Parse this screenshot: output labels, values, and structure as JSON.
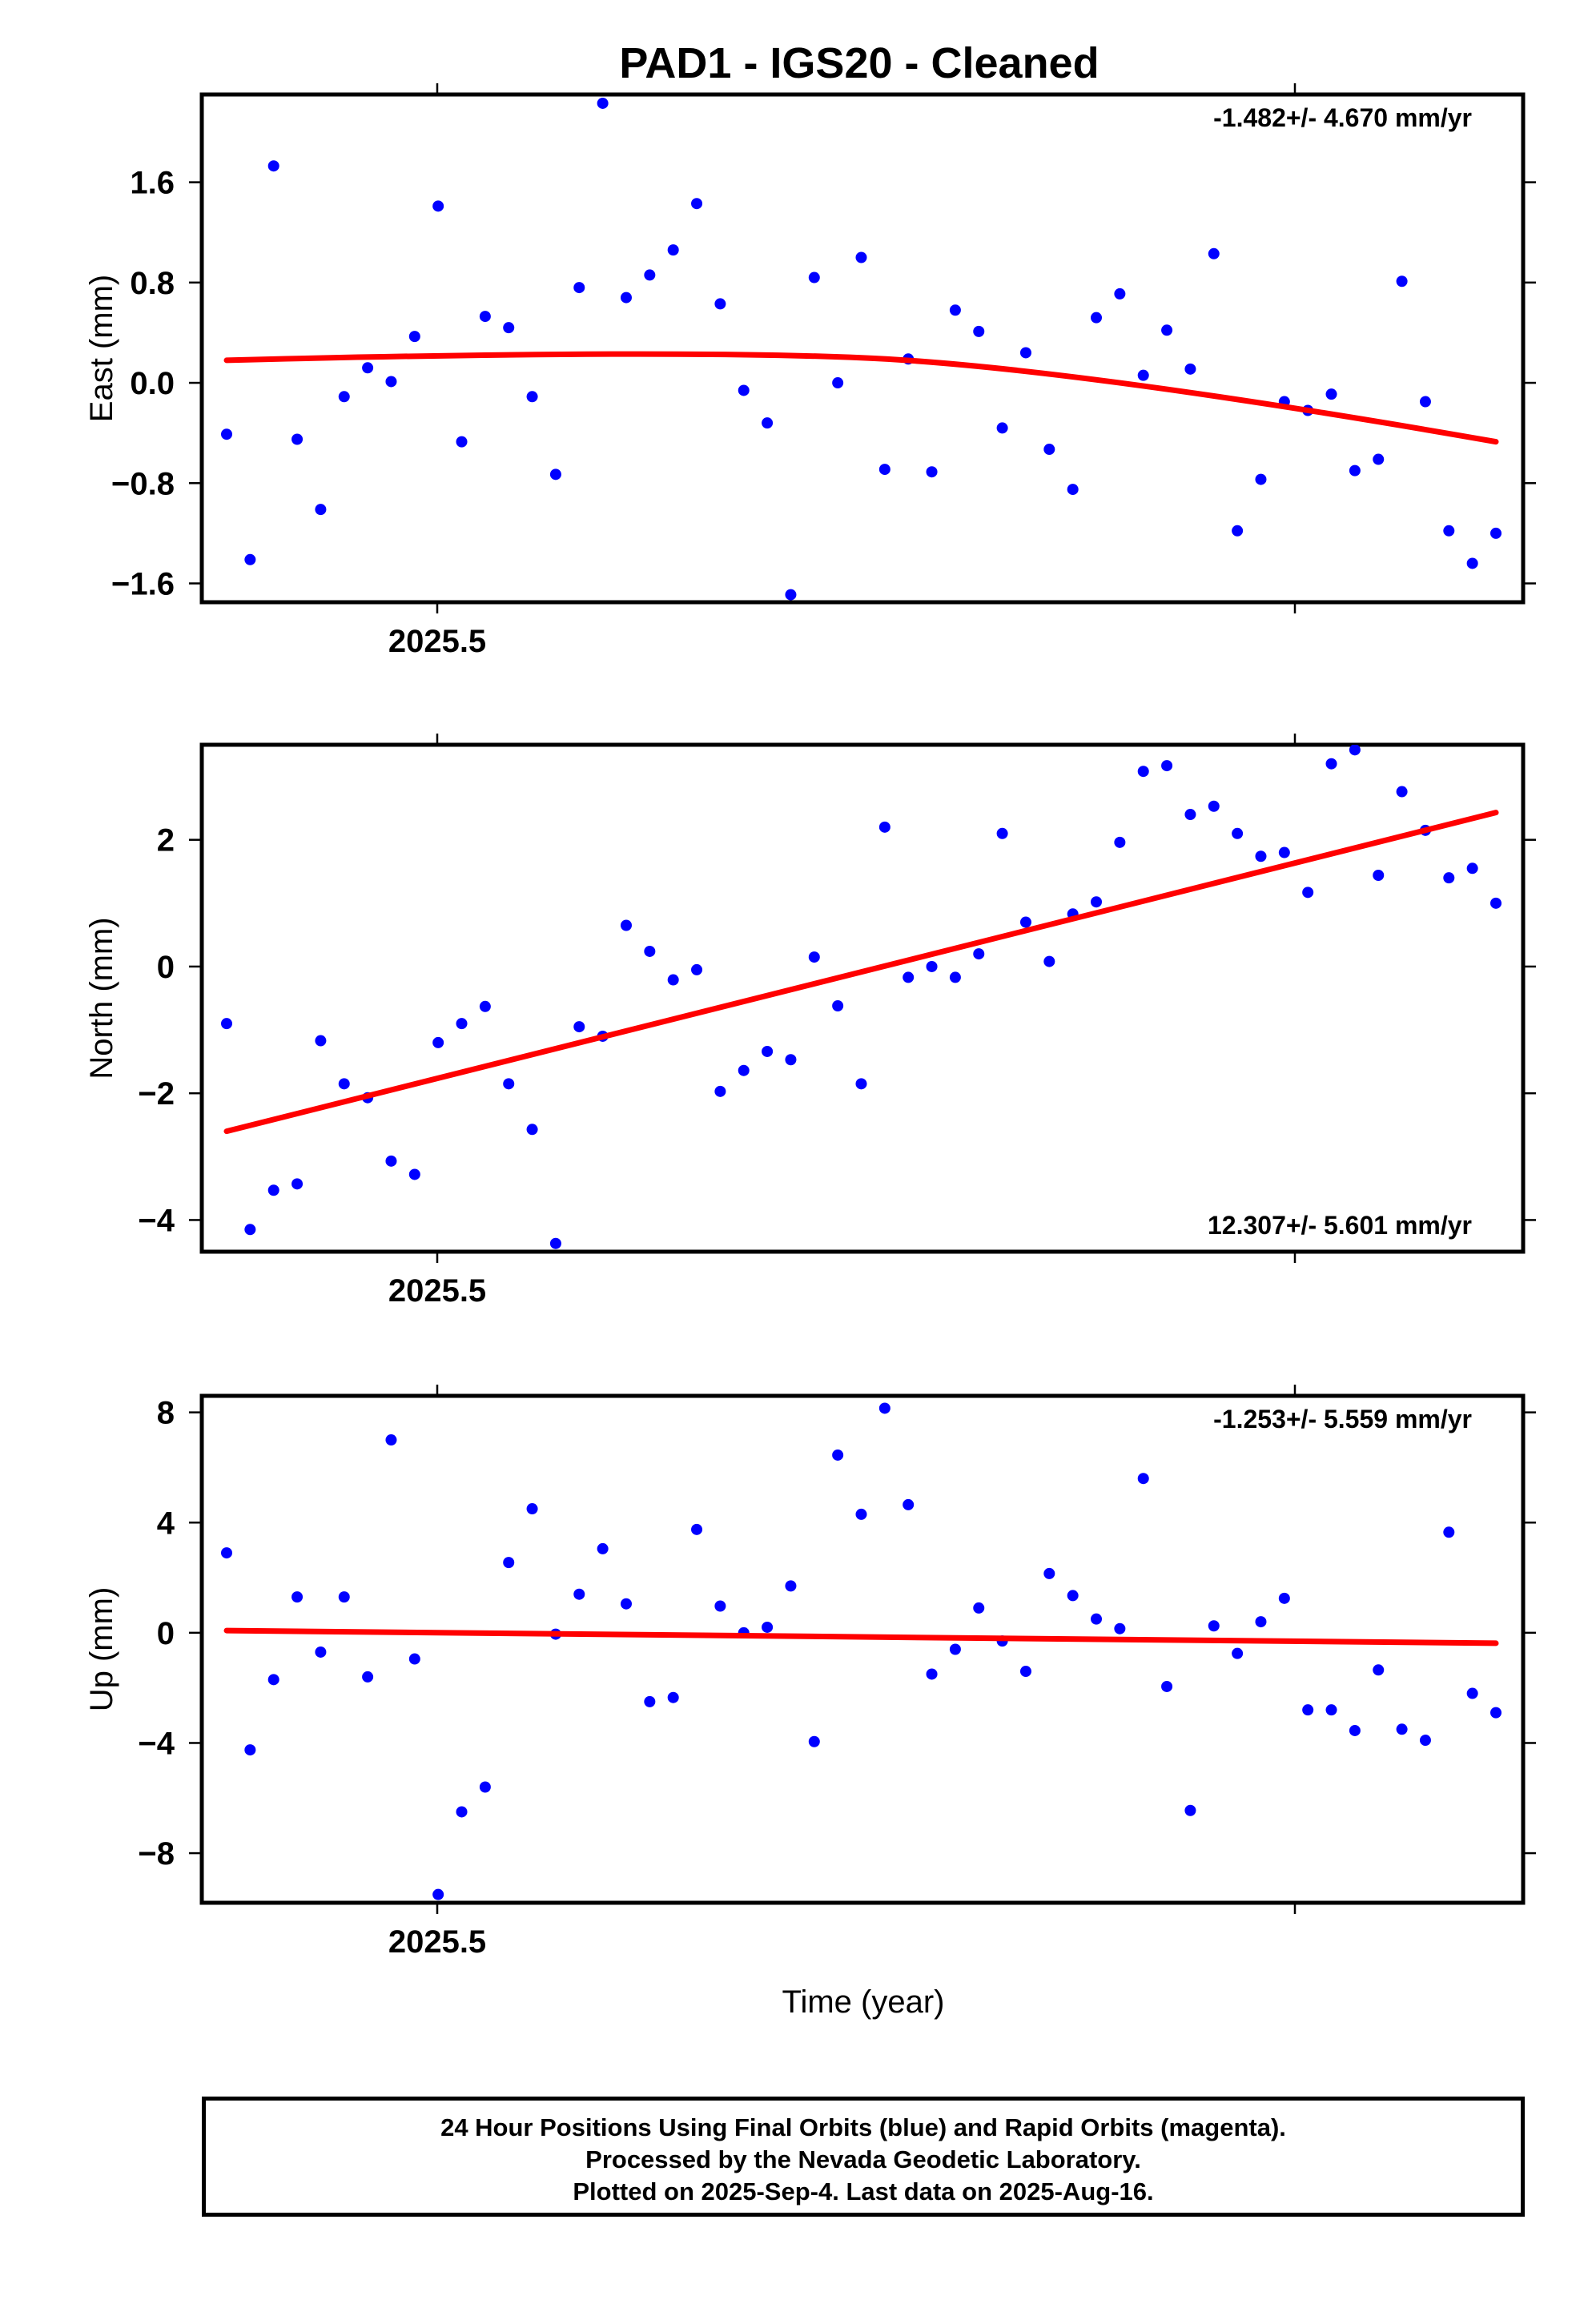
{
  "title": "PAD1  - IGS20 - Cleaned",
  "xlabel": "Time (year)",
  "footer": {
    "line1": "24 Hour Positions Using Final Orbits (blue) and Rapid Orbits (magenta).",
    "line2": "Processed by the Nevada Geodetic Laboratory.",
    "line3": "Plotted on 2025-Sep-4. Last data on 2025-Aug-16."
  },
  "colors": {
    "points": "#0000ff",
    "trend": "#ff0000",
    "axes": "#000000"
  },
  "chart_data": [
    {
      "type": "scatter",
      "ylabel": "East (mm)",
      "rate_label": "-1.482+/- 4.670 mm/yr",
      "rate_position": "top-right",
      "x_tick_labels": [
        "2025.5"
      ],
      "y_ticks": [
        -1.6,
        -0.8,
        0.0,
        0.8,
        1.6
      ],
      "y_tick_labels": [
        "−1.6",
        "−0.8",
        "0.0",
        "0.8",
        "1.6"
      ],
      "ylim": [
        -1.75,
        2.3
      ],
      "xlim": [
        2025.363,
        2025.63
      ],
      "grid": false,
      "values": [
        -0.41,
        -1.41,
        1.73,
        -0.45,
        -1.01,
        -0.11,
        0.12,
        0.01,
        0.37,
        1.41,
        -0.47,
        0.53,
        0.44,
        -0.11,
        -0.73,
        0.76,
        2.23,
        0.68,
        0.86,
        1.06,
        1.43,
        0.63,
        -0.06,
        -0.32,
        -1.69,
        0.84,
        0.0,
        1.0,
        -0.69,
        0.19,
        -0.71,
        0.58,
        0.41,
        -0.36,
        0.24,
        -0.53,
        -0.85,
        0.52,
        0.71,
        0.06,
        0.42,
        0.11,
        1.03,
        -1.18,
        -0.77,
        -0.15,
        -0.22,
        -0.09,
        -0.7,
        -0.61,
        0.81,
        -0.15,
        -1.18,
        -1.44,
        -1.2
      ],
      "trend": {
        "start": 0.18,
        "end": -0.47,
        "peak": 0.23
      }
    },
    {
      "type": "scatter",
      "ylabel": "North (mm)",
      "rate_label": "12.307+/- 5.601 mm/yr",
      "rate_position": "bottom-right",
      "x_tick_labels": [
        "2025.5"
      ],
      "y_ticks": [
        -4,
        -2,
        0,
        2
      ],
      "y_tick_labels": [
        "−4",
        "−2",
        "0",
        "2"
      ],
      "ylim": [
        -4.5,
        3.5
      ],
      "xlim": [
        2025.363,
        2025.63
      ],
      "grid": false,
      "values": [
        -0.9,
        -4.15,
        -3.53,
        -3.43,
        -1.17,
        -1.85,
        -2.07,
        -3.07,
        -3.28,
        -1.2,
        -0.9,
        -0.63,
        -1.85,
        -2.57,
        -4.37,
        -0.95,
        -1.1,
        0.65,
        0.24,
        -0.21,
        -0.05,
        -1.97,
        -1.64,
        -1.34,
        -1.47,
        0.15,
        -0.62,
        -1.85,
        2.2,
        -0.17,
        0.0,
        -0.17,
        0.2,
        2.1,
        0.7,
        0.08,
        0.83,
        1.02,
        1.96,
        3.08,
        3.17,
        2.4,
        2.53,
        2.1,
        1.74,
        1.8,
        1.17,
        3.2,
        3.42,
        1.44,
        2.76,
        2.15,
        1.4,
        1.55,
        1.0
      ],
      "trend": {
        "start": -2.6,
        "end": 2.43
      }
    },
    {
      "type": "scatter",
      "ylabel": "Up (mm)",
      "rate_label": "-1.253+/- 5.559 mm/yr",
      "rate_position": "top-right",
      "x_tick_labels": [
        "2025.5"
      ],
      "y_ticks": [
        -8,
        -4,
        0,
        4,
        8
      ],
      "y_tick_labels": [
        "−8",
        "−4",
        "0",
        "4",
        "8"
      ],
      "ylim": [
        -9.8,
        8.6
      ],
      "xlim": [
        2025.363,
        2025.63
      ],
      "grid": false,
      "values": [
        2.9,
        -4.25,
        -1.7,
        1.3,
        -0.7,
        1.3,
        -1.6,
        7.0,
        -0.95,
        -9.5,
        -6.5,
        -5.6,
        2.55,
        4.5,
        -0.05,
        1.4,
        3.05,
        1.05,
        -2.5,
        -2.35,
        3.75,
        0.97,
        0.0,
        0.2,
        1.7,
        -3.95,
        6.45,
        4.3,
        8.15,
        4.65,
        -1.5,
        -0.6,
        0.9,
        -0.3,
        -1.4,
        2.15,
        1.35,
        0.5,
        0.15,
        5.6,
        -1.95,
        -6.45,
        0.25,
        -0.75,
        0.4,
        1.25,
        -2.8,
        -2.8,
        -3.55,
        -1.35,
        -3.5,
        -3.9,
        3.65,
        -2.2,
        -2.9
      ],
      "trend": {
        "start": 0.08,
        "end": -0.38
      }
    }
  ]
}
